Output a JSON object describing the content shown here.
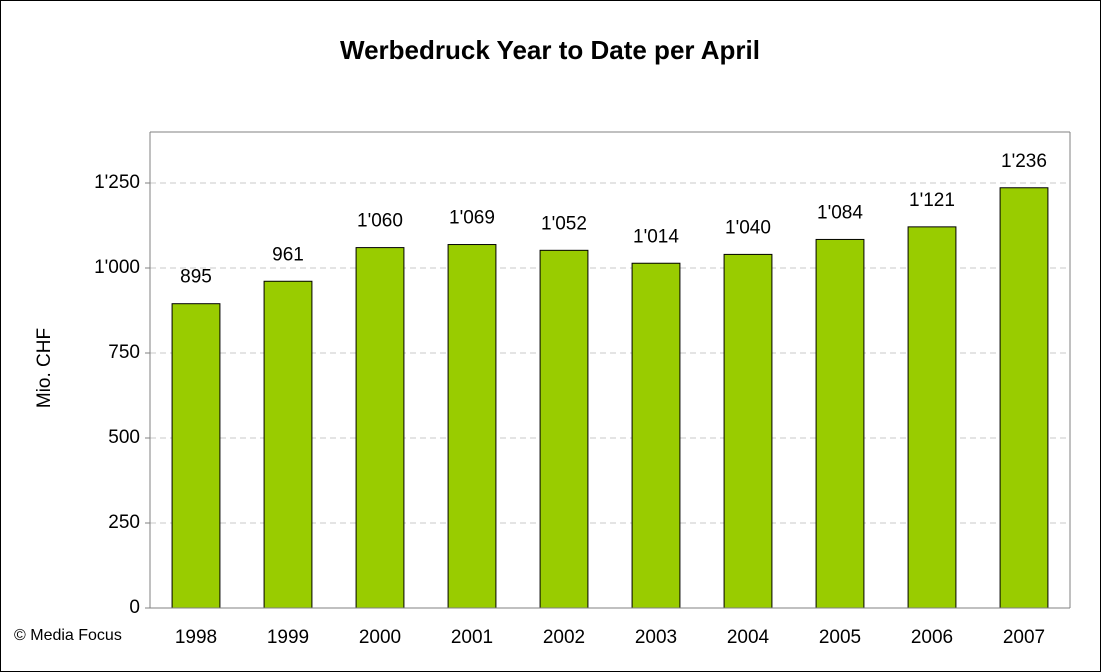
{
  "chart_data": {
    "type": "bar",
    "title": "Werbedruck Year to Date per April",
    "y_label": "Mio. CHF",
    "source": "© Media Focus",
    "categories": [
      "1998",
      "1999",
      "2000",
      "2001",
      "2002",
      "2003",
      "2004",
      "2005",
      "2006",
      "2007"
    ],
    "values": [
      895,
      961,
      1060,
      1069,
      1052,
      1014,
      1040,
      1084,
      1121,
      1236
    ],
    "value_labels": [
      "895",
      "961",
      "1'060",
      "1'069",
      "1'052",
      "1'014",
      "1'040",
      "1'084",
      "1'121",
      "1'236"
    ],
    "color": "#99cc00",
    "ylim": [
      0,
      1400
    ],
    "yticks": [
      0,
      250,
      500,
      750,
      {
        "value": 1000,
        "label": "1'000"
      },
      {
        "value": 1250,
        "label": "1'250"
      }
    ],
    "grid": true
  }
}
